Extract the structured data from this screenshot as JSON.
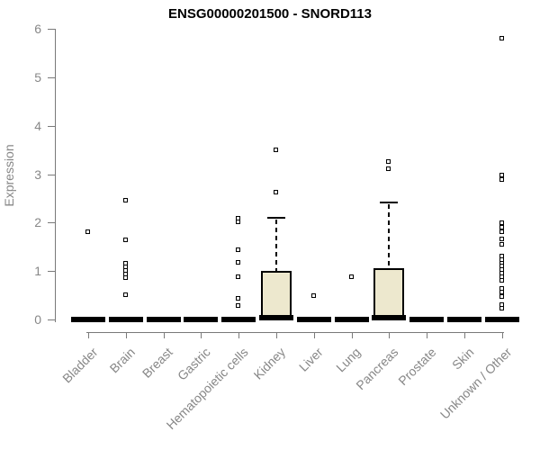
{
  "chart_data": {
    "type": "boxplot",
    "title": "ENSG00000201500 - SNORD113",
    "ylabel": "Expression",
    "ylim": [
      0,
      6
    ],
    "yticks": [
      0,
      1,
      2,
      3,
      4,
      5,
      6
    ],
    "grid": false,
    "legend": false,
    "categories": [
      "Bladder",
      "Brain",
      "Breast",
      "Gastric",
      "Hematopoietic cells",
      "Kidney",
      "Liver",
      "Lung",
      "Pancreas",
      "Prostate",
      "Skin",
      "Unknown / Other"
    ],
    "boxes": [
      {
        "category": "Bladder",
        "median": 0,
        "q1": 0,
        "q3": 0,
        "whisker_low": 0,
        "whisker_high": 0,
        "outliers": [
          1.8
        ]
      },
      {
        "category": "Brain",
        "median": 0,
        "q1": 0,
        "q3": 0,
        "whisker_low": 0,
        "whisker_high": 0,
        "outliers": [
          2.45,
          1.63,
          1.15,
          1.07,
          1.0,
          0.93,
          0.86,
          0.5
        ]
      },
      {
        "category": "Breast",
        "median": 0,
        "q1": 0,
        "q3": 0,
        "whisker_low": 0,
        "whisker_high": 0,
        "outliers": []
      },
      {
        "category": "Gastric",
        "median": 0,
        "q1": 0,
        "q3": 0,
        "whisker_low": 0,
        "whisker_high": 0,
        "outliers": []
      },
      {
        "category": "Hematopoietic cells",
        "median": 0,
        "q1": 0,
        "q3": 0,
        "whisker_low": 0,
        "whisker_high": 0,
        "outliers": [
          2.08,
          2.0,
          1.43,
          1.17,
          0.87,
          0.42,
          0.28
        ]
      },
      {
        "category": "Kidney",
        "median": 0.03,
        "q1": 0,
        "q3": 1.0,
        "whisker_low": 0,
        "whisker_high": 2.1,
        "outliers": [
          3.5,
          2.62
        ]
      },
      {
        "category": "Liver",
        "median": 0,
        "q1": 0,
        "q3": 0,
        "whisker_low": 0,
        "whisker_high": 0,
        "outliers": [
          0.48
        ]
      },
      {
        "category": "Lung",
        "median": 0,
        "q1": 0,
        "q3": 0,
        "whisker_low": 0,
        "whisker_high": 0,
        "outliers": [
          0.87
        ]
      },
      {
        "category": "Pancreas",
        "median": 0.03,
        "q1": 0,
        "q3": 1.06,
        "whisker_low": 0,
        "whisker_high": 2.42,
        "outliers": [
          3.25,
          3.1
        ]
      },
      {
        "category": "Prostate",
        "median": 0,
        "q1": 0,
        "q3": 0,
        "whisker_low": 0,
        "whisker_high": 0,
        "outliers": []
      },
      {
        "category": "Skin",
        "median": 0,
        "q1": 0,
        "q3": 0,
        "whisker_low": 0,
        "whisker_high": 0,
        "outliers": []
      },
      {
        "category": "Unknown / Other",
        "median": 0,
        "q1": 0,
        "q3": 0,
        "whisker_low": 0,
        "whisker_high": 0,
        "outliers": [
          5.8,
          2.97,
          2.88,
          1.98,
          1.9,
          1.8,
          1.66,
          1.55,
          1.3,
          1.23,
          1.16,
          1.09,
          1.02,
          0.95,
          0.88,
          0.8,
          0.64,
          0.55,
          0.47,
          0.3,
          0.22
        ]
      }
    ],
    "colors": {
      "box_fill": "#EDE8CE",
      "box_border": "#000000",
      "point_fill": "#ffffff",
      "point_border": "#000000",
      "axis_line": "#7a7a7a",
      "axis_text": "#878787",
      "title_text": "#000000",
      "background": "#ffffff"
    }
  }
}
